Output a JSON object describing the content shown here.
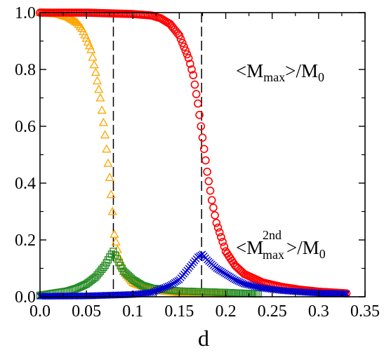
{
  "chart_data": {
    "type": "scatter",
    "xlabel": "d",
    "ylabel": "",
    "xlim": [
      0,
      0.35
    ],
    "ylim": [
      0,
      1.0
    ],
    "x_ticks": [
      "0.0",
      "0.05",
      "0.1",
      "0.15",
      "0.2",
      "0.25",
      "0.3",
      "0.35"
    ],
    "y_ticks": [
      "0.0",
      "0.2",
      "0.4",
      "0.6",
      "0.8",
      "1.0"
    ],
    "grid": false,
    "annotations": {
      "mmax": {
        "open": "<M",
        "sub": "max",
        "close": ">/M",
        "sub0": "0"
      },
      "m2nd": {
        "open": "<M",
        "sup": "2nd",
        "sub": "max",
        "close": " >/M",
        "sub0": "0"
      }
    },
    "vlines": [
      0.079,
      0.174
    ],
    "series": [
      {
        "marker": "triangle",
        "color": "#FFA500",
        "points": [
          [
            0.0,
            1.0
          ],
          [
            0.01,
            0.998
          ],
          [
            0.02,
            0.995
          ],
          [
            0.03,
            0.985
          ],
          [
            0.04,
            0.965
          ],
          [
            0.045,
            0.945
          ],
          [
            0.05,
            0.91
          ],
          [
            0.055,
            0.87
          ],
          [
            0.06,
            0.79
          ],
          [
            0.065,
            0.7
          ],
          [
            0.07,
            0.57
          ],
          [
            0.075,
            0.42
          ],
          [
            0.078,
            0.3
          ],
          [
            0.08,
            0.22
          ],
          [
            0.085,
            0.14
          ],
          [
            0.09,
            0.09
          ],
          [
            0.1,
            0.05
          ],
          [
            0.12,
            0.025
          ],
          [
            0.15,
            0.015
          ],
          [
            0.2,
            0.01
          ]
        ]
      },
      {
        "marker": "square",
        "color": "#228B22",
        "points": [
          [
            0.0,
            0.005
          ],
          [
            0.01,
            0.01
          ],
          [
            0.02,
            0.015
          ],
          [
            0.03,
            0.02
          ],
          [
            0.04,
            0.03
          ],
          [
            0.05,
            0.045
          ],
          [
            0.06,
            0.07
          ],
          [
            0.065,
            0.09
          ],
          [
            0.07,
            0.11
          ],
          [
            0.075,
            0.14
          ],
          [
            0.079,
            0.16
          ],
          [
            0.085,
            0.12
          ],
          [
            0.09,
            0.09
          ],
          [
            0.1,
            0.06
          ],
          [
            0.11,
            0.04
          ],
          [
            0.12,
            0.03
          ],
          [
            0.15,
            0.02
          ],
          [
            0.2,
            0.015
          ],
          [
            0.235,
            0.01
          ]
        ]
      },
      {
        "marker": "circle",
        "color": "#FF0000",
        "points": [
          [
            0.0,
            1.0
          ],
          [
            0.05,
            1.0
          ],
          [
            0.1,
            0.995
          ],
          [
            0.12,
            0.99
          ],
          [
            0.13,
            0.98
          ],
          [
            0.14,
            0.96
          ],
          [
            0.15,
            0.92
          ],
          [
            0.16,
            0.84
          ],
          [
            0.165,
            0.78
          ],
          [
            0.17,
            0.68
          ],
          [
            0.175,
            0.56
          ],
          [
            0.18,
            0.44
          ],
          [
            0.185,
            0.34
          ],
          [
            0.19,
            0.26
          ],
          [
            0.2,
            0.16
          ],
          [
            0.21,
            0.11
          ],
          [
            0.22,
            0.08
          ],
          [
            0.24,
            0.05
          ],
          [
            0.26,
            0.035
          ],
          [
            0.28,
            0.025
          ],
          [
            0.3,
            0.018
          ],
          [
            0.33,
            0.012
          ]
        ]
      },
      {
        "marker": "cross",
        "color": "#0000CC",
        "points": [
          [
            0.0,
            0.002
          ],
          [
            0.05,
            0.003
          ],
          [
            0.1,
            0.008
          ],
          [
            0.12,
            0.015
          ],
          [
            0.14,
            0.04
          ],
          [
            0.15,
            0.06
          ],
          [
            0.16,
            0.1
          ],
          [
            0.17,
            0.14
          ],
          [
            0.175,
            0.15
          ],
          [
            0.18,
            0.13
          ],
          [
            0.19,
            0.1
          ],
          [
            0.2,
            0.08
          ],
          [
            0.21,
            0.06
          ],
          [
            0.22,
            0.045
          ],
          [
            0.24,
            0.03
          ],
          [
            0.26,
            0.022
          ],
          [
            0.28,
            0.017
          ],
          [
            0.3,
            0.013
          ],
          [
            0.33,
            0.01
          ]
        ]
      }
    ]
  }
}
